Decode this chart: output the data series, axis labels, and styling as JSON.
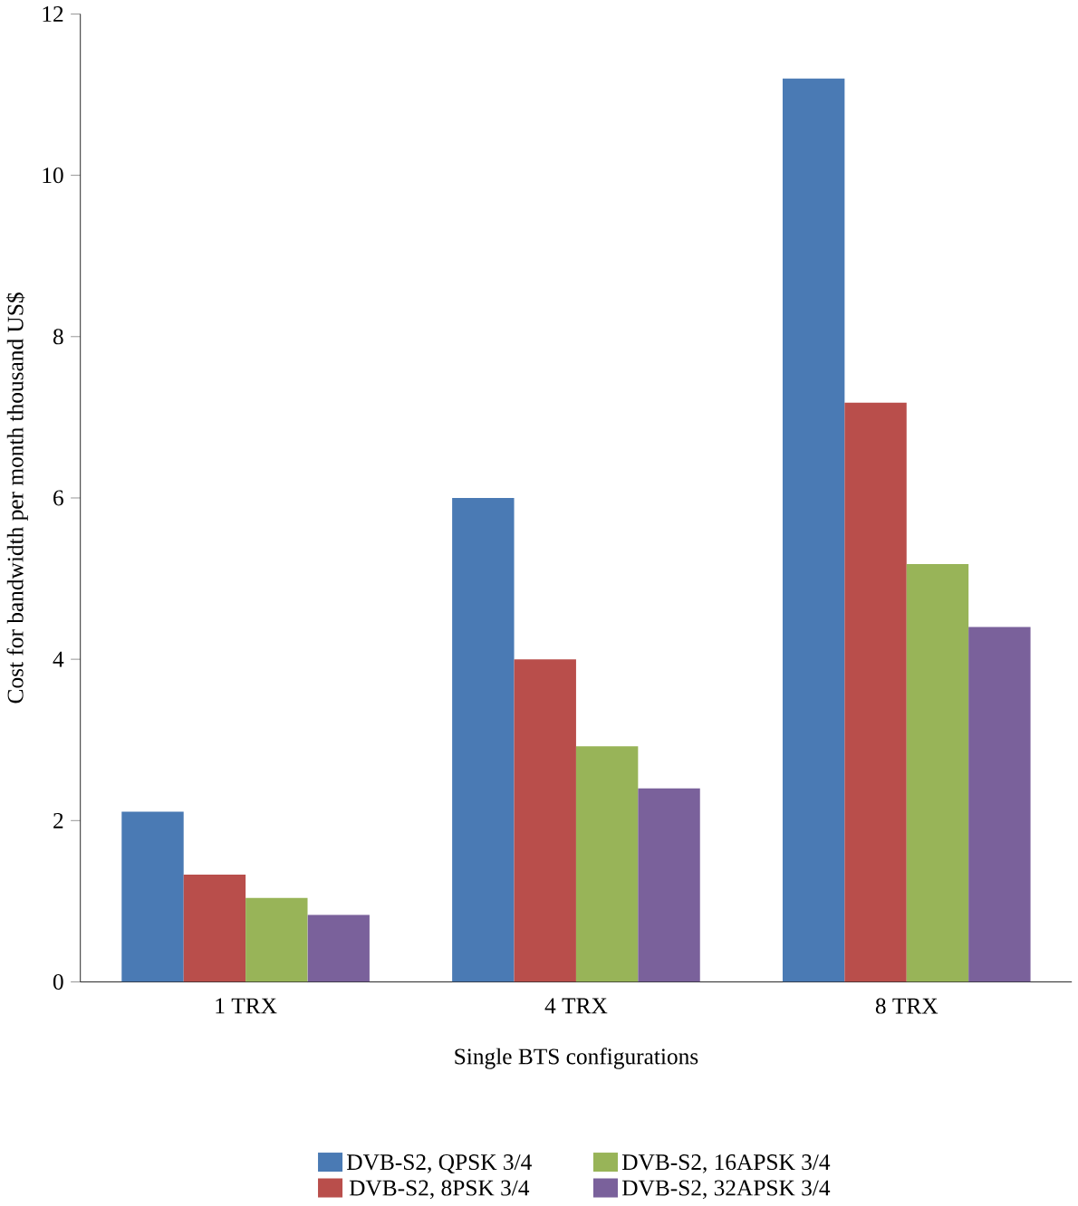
{
  "chart_data": {
    "type": "bar",
    "xlabel": "Single BTS configurations",
    "ylabel": "Cost for bandwidth per month thousand US$",
    "categories": [
      "1 TRX",
      "4 TRX",
      "8 TRX"
    ],
    "series": [
      {
        "name": "DVB-S2, QPSK 3/4",
        "color": "#4a7ab4",
        "values": [
          2.11,
          6.0,
          11.2
        ]
      },
      {
        "name": "DVB-S2, 8PSK 3/4",
        "color": "#b94e4b",
        "values": [
          1.33,
          4.0,
          7.18
        ]
      },
      {
        "name": "DVB-S2, 16APSK 3/4",
        "color": "#98b458",
        "values": [
          1.04,
          2.92,
          5.18
        ]
      },
      {
        "name": "DVB-S2, 32APSK 3/4",
        "color": "#7a619b",
        "values": [
          0.83,
          2.4,
          4.4
        ]
      }
    ],
    "ylim": [
      0,
      12
    ],
    "yticks": [
      0,
      2,
      4,
      6,
      8,
      10,
      12
    ],
    "grid": false,
    "legend": "bottom"
  }
}
